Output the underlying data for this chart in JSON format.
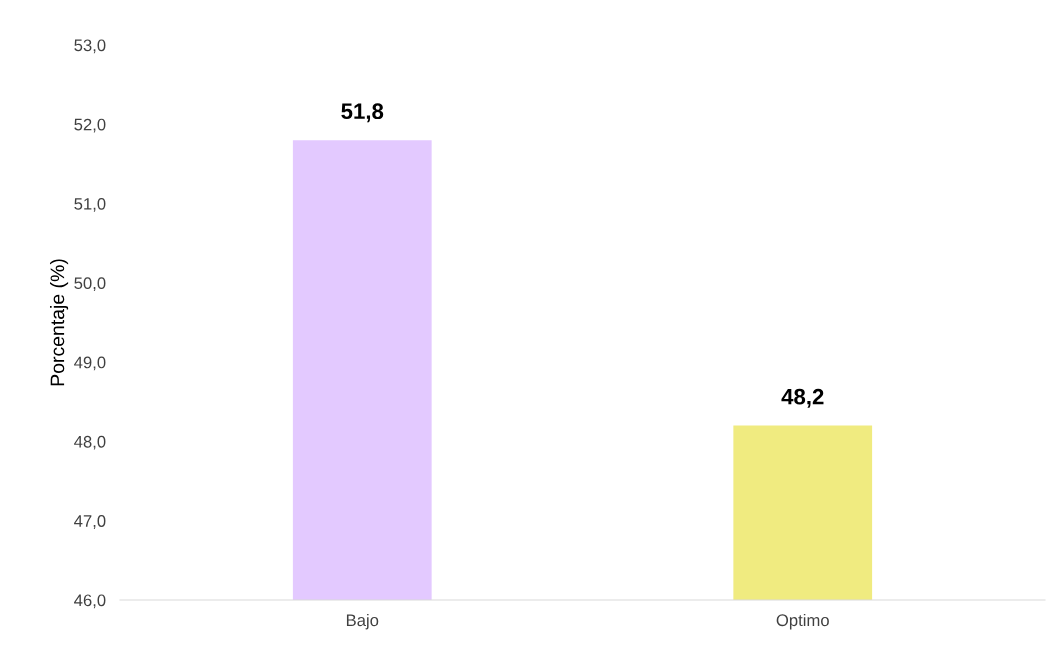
{
  "chart_data": {
    "type": "bar",
    "ylabel": "Porcentaje (%)",
    "categories": [
      "Bajo",
      "Optimo"
    ],
    "values": [
      51.8,
      48.2
    ],
    "colors": [
      "#e3c9ff",
      "#f0eb80"
    ],
    "value_labels": [
      "51,8",
      "48,2"
    ],
    "ylim": [
      46,
      53
    ],
    "yticks": [
      {
        "value": 46,
        "label": "46,0"
      },
      {
        "value": 47,
        "label": "47,0"
      },
      {
        "value": 48,
        "label": "48,0"
      },
      {
        "value": 49,
        "label": "49,0"
      },
      {
        "value": 50,
        "label": "50,0"
      },
      {
        "value": 51,
        "label": "51,0"
      },
      {
        "value": 52,
        "label": "52,0"
      },
      {
        "value": 53,
        "label": "53,0"
      }
    ],
    "grid": false,
    "legend": false
  }
}
